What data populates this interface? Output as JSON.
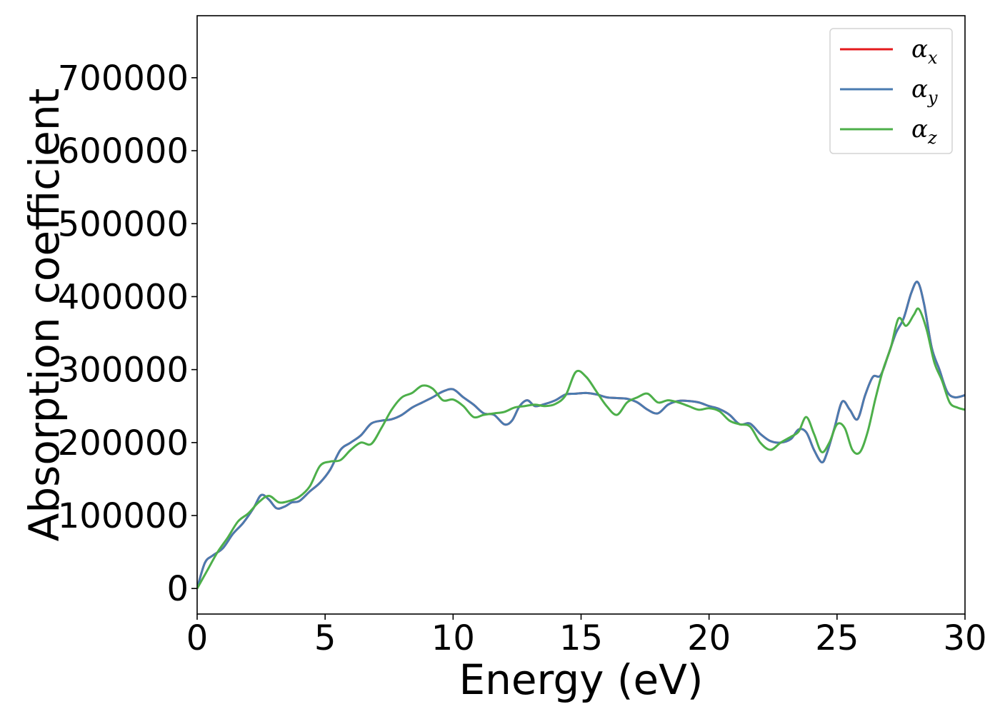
{
  "chart_data": {
    "type": "line",
    "title": "",
    "xlabel": "Energy (eV)",
    "ylabel": "Absorption coefficient",
    "xlim": [
      0,
      30
    ],
    "ylim": [
      -35000,
      785000
    ],
    "xticks": [
      0,
      5,
      10,
      15,
      20,
      25,
      30
    ],
    "xtick_labels": [
      "0",
      "5",
      "10",
      "15",
      "20",
      "25",
      "30"
    ],
    "yticks": [
      0,
      100000,
      200000,
      300000,
      400000,
      500000,
      600000,
      700000
    ],
    "ytick_labels": [
      "0",
      "100000",
      "200000",
      "300000",
      "400000",
      "500000",
      "600000",
      "700000"
    ],
    "grid": false,
    "legend_position": "top-right",
    "series": [
      {
        "name": "α_x",
        "legend_base": "α",
        "legend_sub": "x",
        "color": "#e41a1c",
        "x": [
          0,
          0.3,
          0.6,
          1.0,
          1.4,
          1.8,
          2.2,
          2.5,
          2.8,
          3.1,
          3.4,
          3.7,
          4.0,
          4.4,
          4.8,
          5.2,
          5.6,
          6.0,
          6.4,
          6.8,
          7.2,
          7.6,
          8.0,
          8.4,
          8.8,
          9.2,
          9.6,
          10.0,
          10.4,
          10.8,
          11.2,
          11.6,
          12.0,
          12.3,
          12.6,
          12.9,
          13.2,
          13.6,
          14.0,
          14.4,
          14.8,
          15.2,
          15.6,
          16.0,
          16.4,
          16.8,
          17.2,
          17.6,
          18.0,
          18.4,
          18.8,
          19.2,
          19.6,
          20.0,
          20.4,
          20.8,
          21.2,
          21.6,
          22.0,
          22.4,
          22.8,
          23.2,
          23.5,
          23.8,
          24.1,
          24.4,
          24.6,
          24.9,
          25.2,
          25.5,
          25.8,
          26.1,
          26.4,
          26.7,
          27.0,
          27.3,
          27.6,
          27.9,
          28.15,
          28.4,
          28.7,
          29.0,
          29.3,
          29.6,
          30.0
        ],
        "values": [
          0,
          35000,
          45000,
          55000,
          75000,
          90000,
          110000,
          128000,
          122000,
          110000,
          112000,
          118000,
          120000,
          133000,
          145000,
          163000,
          190000,
          200000,
          210000,
          226000,
          230000,
          232000,
          238000,
          248000,
          255000,
          262000,
          270000,
          273000,
          262000,
          252000,
          240000,
          238000,
          225000,
          230000,
          250000,
          258000,
          250000,
          253000,
          258000,
          266000,
          267000,
          268000,
          266000,
          262000,
          261000,
          260000,
          255000,
          245000,
          240000,
          252000,
          257000,
          257000,
          255000,
          250000,
          246000,
          238000,
          225000,
          226000,
          212000,
          202000,
          200000,
          205000,
          218000,
          214000,
          190000,
          173000,
          185000,
          220000,
          256000,
          245000,
          232000,
          265000,
          290000,
          292000,
          320000,
          350000,
          370000,
          405000,
          420000,
          390000,
          330000,
          300000,
          270000,
          262000,
          265000
        ]
      },
      {
        "name": "α_y",
        "legend_base": "α",
        "legend_sub": "y",
        "color": "#4a7bb0",
        "x": [
          0,
          0.3,
          0.6,
          1.0,
          1.4,
          1.8,
          2.2,
          2.5,
          2.8,
          3.1,
          3.4,
          3.7,
          4.0,
          4.4,
          4.8,
          5.2,
          5.6,
          6.0,
          6.4,
          6.8,
          7.2,
          7.6,
          8.0,
          8.4,
          8.8,
          9.2,
          9.6,
          10.0,
          10.4,
          10.8,
          11.2,
          11.6,
          12.0,
          12.3,
          12.6,
          12.9,
          13.2,
          13.6,
          14.0,
          14.4,
          14.8,
          15.2,
          15.6,
          16.0,
          16.4,
          16.8,
          17.2,
          17.6,
          18.0,
          18.4,
          18.8,
          19.2,
          19.6,
          20.0,
          20.4,
          20.8,
          21.2,
          21.6,
          22.0,
          22.4,
          22.8,
          23.2,
          23.5,
          23.8,
          24.1,
          24.4,
          24.6,
          24.9,
          25.2,
          25.5,
          25.8,
          26.1,
          26.4,
          26.7,
          27.0,
          27.3,
          27.6,
          27.9,
          28.15,
          28.4,
          28.7,
          29.0,
          29.3,
          29.6,
          30.0
        ],
        "values": [
          0,
          35000,
          45000,
          55000,
          75000,
          90000,
          110000,
          128000,
          122000,
          110000,
          112000,
          118000,
          120000,
          133000,
          145000,
          163000,
          190000,
          200000,
          210000,
          226000,
          230000,
          232000,
          238000,
          248000,
          255000,
          262000,
          270000,
          273000,
          262000,
          252000,
          240000,
          238000,
          225000,
          230000,
          250000,
          258000,
          250000,
          253000,
          258000,
          266000,
          267000,
          268000,
          266000,
          262000,
          261000,
          260000,
          255000,
          245000,
          240000,
          252000,
          257000,
          257000,
          255000,
          250000,
          246000,
          238000,
          225000,
          226000,
          212000,
          202000,
          200000,
          205000,
          218000,
          214000,
          190000,
          173000,
          185000,
          220000,
          256000,
          245000,
          232000,
          265000,
          290000,
          292000,
          320000,
          350000,
          370000,
          405000,
          420000,
          390000,
          330000,
          300000,
          270000,
          262000,
          265000
        ]
      },
      {
        "name": "α_z",
        "legend_base": "α",
        "legend_sub": "z",
        "color": "#4daf4a",
        "x": [
          0,
          0.4,
          0.8,
          1.2,
          1.6,
          2.0,
          2.4,
          2.8,
          3.2,
          3.6,
          4.0,
          4.4,
          4.8,
          5.2,
          5.6,
          6.0,
          6.4,
          6.8,
          7.2,
          7.6,
          8.0,
          8.4,
          8.8,
          9.2,
          9.6,
          10.0,
          10.4,
          10.8,
          11.2,
          11.6,
          12.0,
          12.4,
          12.8,
          13.2,
          13.6,
          14.0,
          14.4,
          14.8,
          15.2,
          15.6,
          16.0,
          16.4,
          16.8,
          17.2,
          17.6,
          18.0,
          18.4,
          18.8,
          19.2,
          19.6,
          20.0,
          20.4,
          20.8,
          21.2,
          21.6,
          22.0,
          22.4,
          22.8,
          23.2,
          23.5,
          23.8,
          24.1,
          24.4,
          24.7,
          25.0,
          25.3,
          25.6,
          25.9,
          26.2,
          26.5,
          26.8,
          27.1,
          27.4,
          27.7,
          28.0,
          28.2,
          28.5,
          28.8,
          29.1,
          29.4,
          29.7,
          30.0
        ],
        "values": [
          0,
          25000,
          50000,
          70000,
          92000,
          103000,
          118000,
          127000,
          118000,
          120000,
          126000,
          140000,
          168000,
          174000,
          176000,
          190000,
          200000,
          198000,
          220000,
          245000,
          262000,
          268000,
          278000,
          274000,
          258000,
          259000,
          250000,
          235000,
          238000,
          240000,
          242000,
          248000,
          250000,
          252000,
          250000,
          253000,
          265000,
          297000,
          290000,
          270000,
          250000,
          238000,
          255000,
          262000,
          267000,
          255000,
          258000,
          255000,
          250000,
          245000,
          247000,
          243000,
          230000,
          225000,
          222000,
          200000,
          190000,
          200000,
          208000,
          215000,
          235000,
          212000,
          187000,
          200000,
          225000,
          220000,
          190000,
          187000,
          215000,
          260000,
          300000,
          330000,
          370000,
          360000,
          375000,
          383000,
          355000,
          310000,
          285000,
          255000,
          248000,
          245000
        ]
      }
    ]
  }
}
